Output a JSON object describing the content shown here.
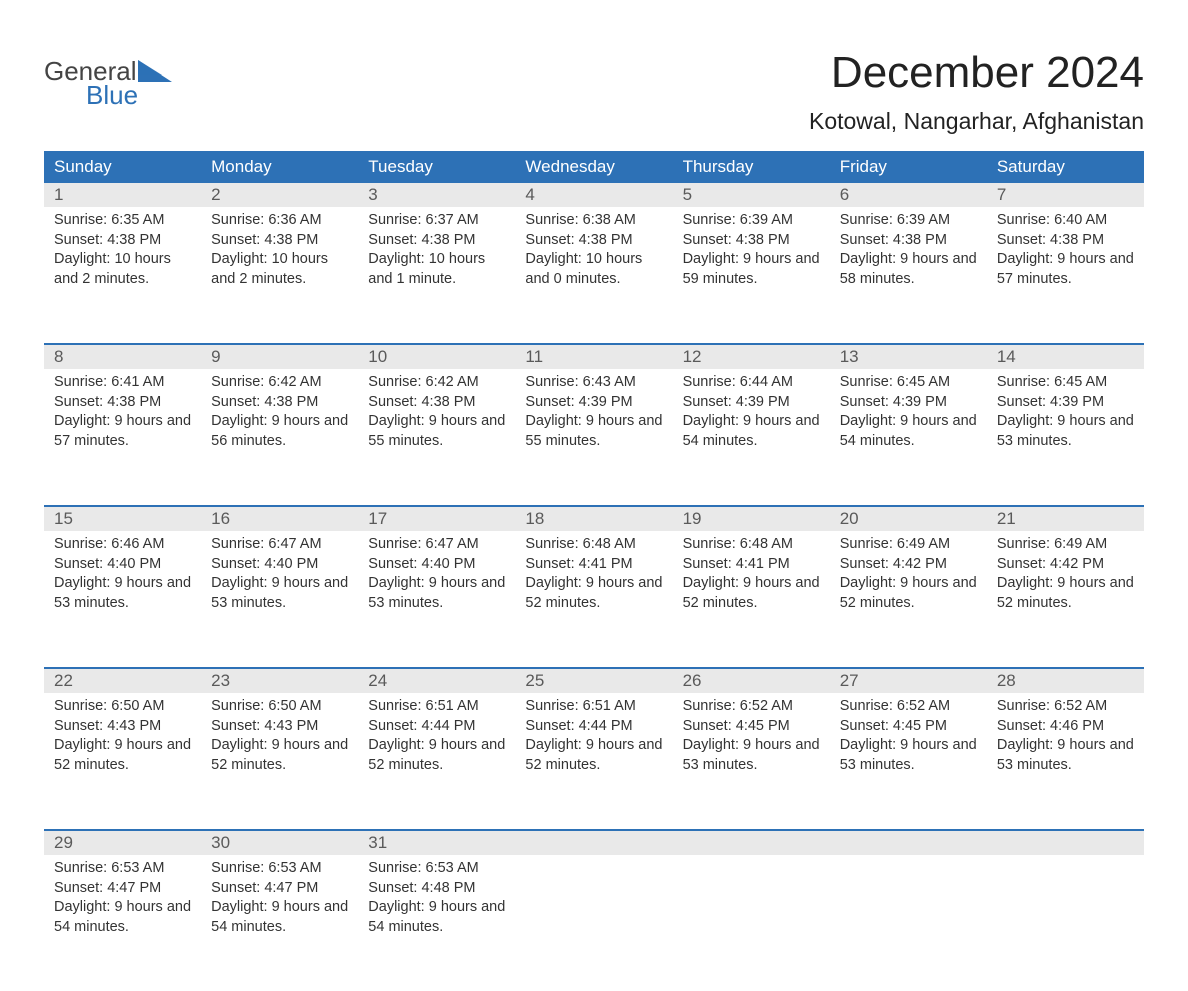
{
  "logo": {
    "top_text": "General",
    "bottom_text": "Blue",
    "top_color": "#444444",
    "bottom_color": "#2d71b6"
  },
  "title": "December 2024",
  "location": "Kotowal, Nangarhar, Afghanistan",
  "colors": {
    "header_bg": "#2d71b6",
    "header_text": "#ffffff",
    "week_border": "#2d71b6",
    "day_strip_bg": "#e9e9e9",
    "body_text": "#333333",
    "day_number_text": "#5a5a5a",
    "background": "#ffffff"
  },
  "typography": {
    "title_fontsize": 44,
    "location_fontsize": 23,
    "weekday_fontsize": 17,
    "daynum_fontsize": 17,
    "content_fontsize": 14.5
  },
  "weekdays": [
    "Sunday",
    "Monday",
    "Tuesday",
    "Wednesday",
    "Thursday",
    "Friday",
    "Saturday"
  ],
  "days": [
    {
      "n": 1,
      "sunrise": "6:35 AM",
      "sunset": "4:38 PM",
      "daylight": "10 hours and 2 minutes."
    },
    {
      "n": 2,
      "sunrise": "6:36 AM",
      "sunset": "4:38 PM",
      "daylight": "10 hours and 2 minutes."
    },
    {
      "n": 3,
      "sunrise": "6:37 AM",
      "sunset": "4:38 PM",
      "daylight": "10 hours and 1 minute."
    },
    {
      "n": 4,
      "sunrise": "6:38 AM",
      "sunset": "4:38 PM",
      "daylight": "10 hours and 0 minutes."
    },
    {
      "n": 5,
      "sunrise": "6:39 AM",
      "sunset": "4:38 PM",
      "daylight": "9 hours and 59 minutes."
    },
    {
      "n": 6,
      "sunrise": "6:39 AM",
      "sunset": "4:38 PM",
      "daylight": "9 hours and 58 minutes."
    },
    {
      "n": 7,
      "sunrise": "6:40 AM",
      "sunset": "4:38 PM",
      "daylight": "9 hours and 57 minutes."
    },
    {
      "n": 8,
      "sunrise": "6:41 AM",
      "sunset": "4:38 PM",
      "daylight": "9 hours and 57 minutes."
    },
    {
      "n": 9,
      "sunrise": "6:42 AM",
      "sunset": "4:38 PM",
      "daylight": "9 hours and 56 minutes."
    },
    {
      "n": 10,
      "sunrise": "6:42 AM",
      "sunset": "4:38 PM",
      "daylight": "9 hours and 55 minutes."
    },
    {
      "n": 11,
      "sunrise": "6:43 AM",
      "sunset": "4:39 PM",
      "daylight": "9 hours and 55 minutes."
    },
    {
      "n": 12,
      "sunrise": "6:44 AM",
      "sunset": "4:39 PM",
      "daylight": "9 hours and 54 minutes."
    },
    {
      "n": 13,
      "sunrise": "6:45 AM",
      "sunset": "4:39 PM",
      "daylight": "9 hours and 54 minutes."
    },
    {
      "n": 14,
      "sunrise": "6:45 AM",
      "sunset": "4:39 PM",
      "daylight": "9 hours and 53 minutes."
    },
    {
      "n": 15,
      "sunrise": "6:46 AM",
      "sunset": "4:40 PM",
      "daylight": "9 hours and 53 minutes."
    },
    {
      "n": 16,
      "sunrise": "6:47 AM",
      "sunset": "4:40 PM",
      "daylight": "9 hours and 53 minutes."
    },
    {
      "n": 17,
      "sunrise": "6:47 AM",
      "sunset": "4:40 PM",
      "daylight": "9 hours and 53 minutes."
    },
    {
      "n": 18,
      "sunrise": "6:48 AM",
      "sunset": "4:41 PM",
      "daylight": "9 hours and 52 minutes."
    },
    {
      "n": 19,
      "sunrise": "6:48 AM",
      "sunset": "4:41 PM",
      "daylight": "9 hours and 52 minutes."
    },
    {
      "n": 20,
      "sunrise": "6:49 AM",
      "sunset": "4:42 PM",
      "daylight": "9 hours and 52 minutes."
    },
    {
      "n": 21,
      "sunrise": "6:49 AM",
      "sunset": "4:42 PM",
      "daylight": "9 hours and 52 minutes."
    },
    {
      "n": 22,
      "sunrise": "6:50 AM",
      "sunset": "4:43 PM",
      "daylight": "9 hours and 52 minutes."
    },
    {
      "n": 23,
      "sunrise": "6:50 AM",
      "sunset": "4:43 PM",
      "daylight": "9 hours and 52 minutes."
    },
    {
      "n": 24,
      "sunrise": "6:51 AM",
      "sunset": "4:44 PM",
      "daylight": "9 hours and 52 minutes."
    },
    {
      "n": 25,
      "sunrise": "6:51 AM",
      "sunset": "4:44 PM",
      "daylight": "9 hours and 52 minutes."
    },
    {
      "n": 26,
      "sunrise": "6:52 AM",
      "sunset": "4:45 PM",
      "daylight": "9 hours and 53 minutes."
    },
    {
      "n": 27,
      "sunrise": "6:52 AM",
      "sunset": "4:45 PM",
      "daylight": "9 hours and 53 minutes."
    },
    {
      "n": 28,
      "sunrise": "6:52 AM",
      "sunset": "4:46 PM",
      "daylight": "9 hours and 53 minutes."
    },
    {
      "n": 29,
      "sunrise": "6:53 AM",
      "sunset": "4:47 PM",
      "daylight": "9 hours and 54 minutes."
    },
    {
      "n": 30,
      "sunrise": "6:53 AM",
      "sunset": "4:47 PM",
      "daylight": "9 hours and 54 minutes."
    },
    {
      "n": 31,
      "sunrise": "6:53 AM",
      "sunset": "4:48 PM",
      "daylight": "9 hours and 54 minutes."
    }
  ],
  "labels": {
    "sunrise": "Sunrise:",
    "sunset": "Sunset:",
    "daylight": "Daylight:"
  },
  "layout": {
    "start_weekday_index": 0,
    "columns": 7,
    "rows": 5
  }
}
